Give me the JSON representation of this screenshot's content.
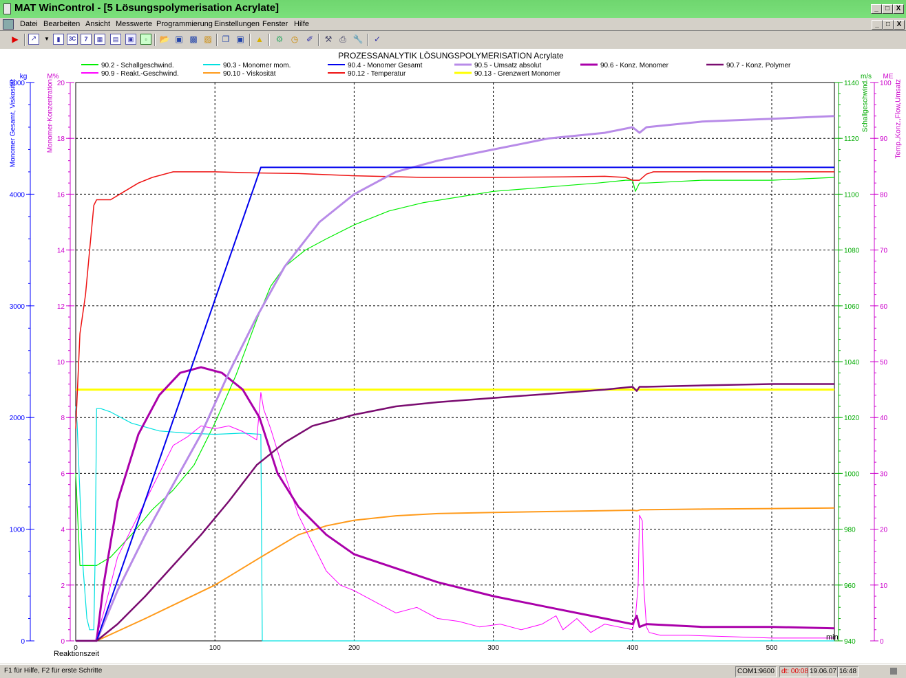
{
  "window": {
    "title": "MAT WinControl - [5 Lösungspolymerisation Acrylate]",
    "btn_min": "_",
    "btn_max": "□",
    "btn_close": "X"
  },
  "menu": {
    "items": [
      "Datei",
      "Bearbeiten",
      "Ansicht",
      "Messwerte",
      "Programmierung",
      "Einstellungen",
      "Fenster",
      "Hilfe"
    ]
  },
  "toolbar": {
    "icons": [
      "play-icon",
      "line-chart-icon",
      "dropdown-arrow-icon",
      "bar-chart-icon",
      "3c-icon",
      "7-icon",
      "grid-icon",
      "table-icon",
      "chart-icon",
      "export-icon",
      "folder-open-icon",
      "save-icon",
      "save-as-icon",
      "print-preview-icon",
      "copy-icon",
      "disk-icon",
      "bell-icon",
      "device-icon",
      "clock-icon",
      "brush-icon",
      "tools-icon",
      "print-icon",
      "wrench-icon",
      "checkmark-icon"
    ]
  },
  "status": {
    "help": "F1 für Hilfe, F2 für erste Schritte",
    "com": "COM1:9600",
    "dt": "dt: 00:08",
    "date": "19.06.07",
    "time": "16:48"
  },
  "chart_data": {
    "type": "line",
    "title": "PROZESSANALYTIK LÖSUNGSPOLYMERISATION  Acrylate",
    "xlabel": "Reaktionszeit",
    "xunit": "min",
    "xlim": [
      0,
      545
    ],
    "x_ticks": [
      0,
      100,
      200,
      300,
      400,
      500
    ],
    "grid": true,
    "legend_position": "top",
    "axes": {
      "left_outer": {
        "label": "Monomer Gesamt, Viskosität",
        "unit": "kg",
        "color": "#0000ff",
        "range": [
          0,
          5000
        ],
        "ticks": [
          0,
          1000,
          2000,
          3000,
          4000,
          5000
        ]
      },
      "left_inner": {
        "label": "Monomer-Konzentration",
        "unit": "M%",
        "color": "#cc00cc",
        "range": [
          0,
          20
        ],
        "ticks": [
          0,
          2,
          4,
          6,
          8,
          10,
          12,
          14,
          16,
          18,
          20
        ]
      },
      "right_inner": {
        "label": "Schallgeschwind.",
        "unit": "m/s",
        "color": "#00aa00",
        "range": [
          940,
          1140
        ],
        "ticks": [
          940,
          960,
          980,
          1000,
          1020,
          1040,
          1060,
          1080,
          1100,
          1120,
          1140
        ]
      },
      "right_outer": {
        "label": "Temp.,Konz.,Flow,Umsatz",
        "unit": "ME",
        "color": "#cc00cc",
        "range": [
          0,
          100
        ],
        "ticks": [
          0,
          10,
          20,
          30,
          40,
          50,
          60,
          70,
          80,
          90,
          100
        ]
      }
    },
    "series": [
      {
        "name": "90.2 - Schallgeschwind.",
        "color": "#00ee00",
        "width": 1.2,
        "axis": "right_inner",
        "x": [
          0,
          3,
          10,
          15,
          25,
          40,
          55,
          70,
          85,
          100,
          115,
          130,
          140,
          150,
          165,
          180,
          200,
          225,
          250,
          275,
          300,
          325,
          350,
          375,
          395,
          400,
          402,
          405,
          410,
          450,
          500,
          545
        ],
        "y": [
          1000,
          967,
          967,
          967,
          970,
          978,
          987,
          994,
          1003,
          1018,
          1035,
          1055,
          1067,
          1074,
          1080,
          1084,
          1089,
          1094,
          1097,
          1099,
          1101,
          1102,
          1103,
          1104,
          1105,
          1105,
          1101,
          1104,
          1104,
          1105,
          1105,
          1106
        ]
      },
      {
        "name": "90.3 - Monomer mom.",
        "color": "#00e0e0",
        "width": 1.2,
        "axis": "left_outer",
        "x": [
          0,
          1,
          5,
          8,
          10,
          13,
          14,
          15,
          18,
          25,
          40,
          60,
          80,
          100,
          120,
          133,
          134,
          135,
          545
        ],
        "y": [
          2100,
          1950,
          700,
          200,
          100,
          100,
          800,
          2080,
          2080,
          2050,
          1950,
          1880,
          1860,
          1850,
          1860,
          1850,
          0,
          0,
          0
        ]
      },
      {
        "name": "90.4 - Monomer Gesamt",
        "color": "#0000ee",
        "width": 2,
        "axis": "left_outer",
        "x": [
          0,
          15,
          133,
          545
        ],
        "y": [
          0,
          0,
          4240,
          4240
        ]
      },
      {
        "name": "90.5 - Umsatz absolut",
        "color": "#b88be8",
        "width": 3,
        "axis": "right_outer",
        "x": [
          0,
          15,
          30,
          50,
          70,
          90,
          110,
          130,
          150,
          175,
          200,
          230,
          260,
          300,
          340,
          380,
          400,
          405,
          410,
          450,
          500,
          545
        ],
        "y": [
          0,
          0,
          9,
          19,
          28,
          37,
          48,
          58,
          67,
          75,
          80,
          84,
          86,
          88,
          90,
          91,
          92,
          91,
          92,
          93,
          93.5,
          94
        ]
      },
      {
        "name": "90.6 - Konz. Monomer",
        "color": "#aa00aa",
        "width": 3,
        "axis": "left_inner",
        "x": [
          0,
          15,
          20,
          30,
          45,
          60,
          75,
          90,
          105,
          120,
          132,
          145,
          160,
          180,
          200,
          230,
          260,
          300,
          340,
          380,
          400,
          403,
          405,
          410,
          450,
          500,
          545
        ],
        "y": [
          0,
          0,
          2,
          5,
          7.4,
          8.8,
          9.6,
          9.8,
          9.6,
          9.0,
          8.0,
          6.0,
          4.8,
          3.8,
          3.1,
          2.6,
          2.1,
          1.6,
          1.2,
          0.8,
          0.6,
          0.9,
          0.5,
          0.6,
          0.5,
          0.5,
          0.45
        ]
      },
      {
        "name": "90.7 - Konz. Polymer",
        "color": "#7a0c70",
        "width": 2.5,
        "axis": "left_inner",
        "x": [
          0,
          15,
          30,
          50,
          70,
          90,
          110,
          130,
          150,
          170,
          200,
          230,
          260,
          300,
          340,
          380,
          400,
          403,
          405,
          410,
          450,
          500,
          545
        ],
        "y": [
          0,
          0,
          0.6,
          1.6,
          2.7,
          3.8,
          5.0,
          6.3,
          7.1,
          7.7,
          8.1,
          8.4,
          8.55,
          8.7,
          8.85,
          9.0,
          9.1,
          8.95,
          9.1,
          9.1,
          9.15,
          9.2,
          9.2
        ]
      },
      {
        "name": "90.9 - Reakt.-Geschwind.",
        "color": "#ff00ff",
        "width": 1,
        "axis": "left_inner",
        "x": [
          0,
          14,
          20,
          25,
          30,
          40,
          50,
          60,
          70,
          80,
          90,
          100,
          110,
          120,
          130,
          133,
          135,
          140,
          145,
          150,
          160,
          170,
          180,
          190,
          200,
          215,
          230,
          245,
          260,
          275,
          290,
          305,
          320,
          335,
          345,
          350,
          360,
          370,
          380,
          390,
          400,
          402,
          404,
          405,
          407,
          408,
          410,
          412,
          420,
          440,
          470,
          500,
          545
        ],
        "y": [
          0,
          0,
          1,
          2,
          3,
          4,
          5,
          6,
          7,
          7.3,
          7.7,
          7.6,
          7.7,
          7.5,
          7.2,
          8.9,
          8.3,
          7.6,
          6.8,
          6.0,
          4.5,
          3.5,
          2.5,
          2.0,
          1.8,
          1.4,
          1.0,
          1.2,
          0.8,
          0.7,
          0.5,
          0.6,
          0.4,
          0.6,
          0.9,
          0.4,
          0.8,
          0.3,
          0.6,
          0.5,
          0.4,
          0.8,
          2.0,
          4.5,
          4.3,
          2.0,
          0.5,
          0.3,
          0.2,
          0.2,
          0.15,
          0.1,
          0.1
        ]
      },
      {
        "name": "90.10 - Viskosität",
        "color": "#ff9a1a",
        "width": 2,
        "axis": "left_outer",
        "x": [
          0,
          15,
          50,
          100,
          133,
          160,
          180,
          200,
          230,
          260,
          300,
          350,
          400,
          403,
          406,
          410,
          450,
          500,
          545
        ],
        "y": [
          0,
          0,
          200,
          500,
          750,
          950,
          1030,
          1080,
          1120,
          1140,
          1150,
          1160,
          1170,
          1165,
          1175,
          1175,
          1180,
          1185,
          1190
        ]
      },
      {
        "name": "90.12 - Temperatur",
        "color": "#ee1111",
        "width": 1.5,
        "axis": "right_outer",
        "x": [
          0,
          3,
          7,
          10,
          13,
          15,
          20,
          25,
          35,
          45,
          55,
          70,
          85,
          100,
          130,
          160,
          200,
          250,
          300,
          350,
          380,
          395,
          400,
          405,
          410,
          415,
          450,
          500,
          545
        ],
        "y": [
          38,
          55,
          62,
          70,
          78,
          79,
          79,
          79,
          80.5,
          82,
          83,
          84,
          84,
          84,
          83.8,
          83.7,
          83.3,
          83,
          83,
          83.1,
          83.2,
          83,
          82.5,
          82.5,
          83.6,
          84,
          84,
          84,
          84
        ]
      },
      {
        "name": "90.13 - Grenzwert Monomer",
        "color": "#ffff00",
        "width": 3,
        "axis": "left_inner",
        "x": [
          0,
          545
        ],
        "y": [
          9,
          9
        ]
      }
    ]
  }
}
